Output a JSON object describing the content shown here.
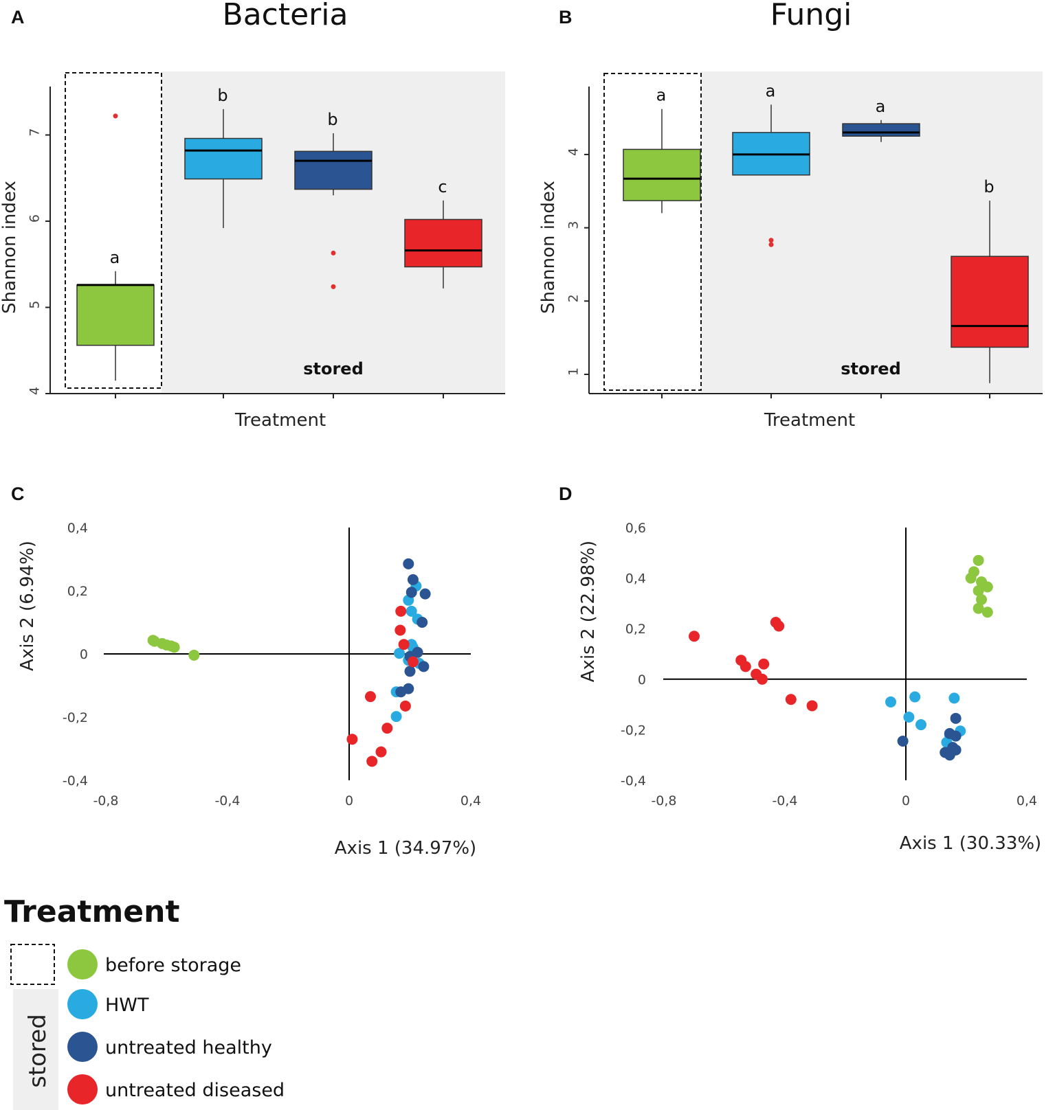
{
  "colors": {
    "before_storage": "#8dc63f",
    "hwt": "#29abe2",
    "untreated_healthy": "#2b5592",
    "untreated_diseased": "#e8262a",
    "panel_bg": "#efefef",
    "outlier": "#e03030"
  },
  "chart_data": [
    {
      "id": "A",
      "type": "box",
      "panel_label": "A",
      "title": "Bacteria",
      "xlabel": "Treatment",
      "ylabel": "Shannon index",
      "ylim": [
        4,
        7.4
      ],
      "yticks": [
        4,
        5,
        6,
        7
      ],
      "annotation": "stored",
      "groups": [
        {
          "name": "before storage",
          "color_key": "before_storage",
          "min": 4.15,
          "q1": 4.56,
          "median": 5.26,
          "q3": 5.26,
          "max": 5.42,
          "outliers": [
            7.22
          ],
          "sig": "a"
        },
        {
          "name": "HWT",
          "color_key": "hwt",
          "min": 5.92,
          "q1": 6.49,
          "median": 6.82,
          "q3": 6.96,
          "max": 7.3,
          "outliers": [],
          "sig": "b"
        },
        {
          "name": "untreated healthy",
          "color_key": "untreated_healthy",
          "min": 6.3,
          "q1": 6.37,
          "median": 6.7,
          "q3": 6.81,
          "max": 7.02,
          "outliers": [
            5.63,
            5.24
          ],
          "sig": "b"
        },
        {
          "name": "untreated diseased",
          "color_key": "untreated_diseased",
          "min": 5.22,
          "q1": 5.47,
          "median": 5.66,
          "q3": 6.02,
          "max": 6.24,
          "outliers": [],
          "sig": "c"
        }
      ]
    },
    {
      "id": "B",
      "type": "box",
      "panel_label": "B",
      "title": "Fungi",
      "xlabel": "Treatment",
      "ylabel": "Shannon index",
      "ylim": [
        0.7,
        4.8
      ],
      "yticks": [
        1,
        2,
        3,
        4
      ],
      "annotation": "stored",
      "groups": [
        {
          "name": "before storage",
          "color_key": "before_storage",
          "min": 3.2,
          "q1": 3.37,
          "median": 3.67,
          "q3": 4.07,
          "max": 4.62,
          "outliers": [],
          "sig": "a"
        },
        {
          "name": "HWT",
          "color_key": "hwt",
          "min": 3.72,
          "q1": 3.72,
          "median": 4.0,
          "q3": 4.3,
          "max": 4.68,
          "outliers": [
            2.83,
            2.77
          ],
          "sig": "a"
        },
        {
          "name": "untreated healthy",
          "color_key": "untreated_healthy",
          "min": 4.17,
          "q1": 4.25,
          "median": 4.3,
          "q3": 4.42,
          "max": 4.47,
          "outliers": [],
          "sig": "a"
        },
        {
          "name": "untreated diseased",
          "color_key": "untreated_diseased",
          "min": 0.88,
          "q1": 1.37,
          "median": 1.66,
          "q3": 2.61,
          "max": 3.37,
          "outliers": [],
          "sig": "b"
        }
      ]
    },
    {
      "id": "C",
      "type": "scatter",
      "panel_label": "C",
      "xlabel": "Axis 1 (34.97%)",
      "ylabel": "Axis 2 (6.94%)",
      "xlim": [
        -0.8,
        0.4
      ],
      "ylim": [
        -0.4,
        0.4
      ],
      "xticks": [
        -0.8,
        -0.4,
        0,
        0.4
      ],
      "yticks": [
        -0.4,
        -0.2,
        0,
        0.2,
        0.4
      ],
      "xticklabels": [
        "-0,8",
        "-0,4",
        "0",
        "0,4"
      ],
      "yticklabels": [
        "-0,4",
        "-0,2",
        "0",
        "0,2",
        "0,4"
      ],
      "series": [
        {
          "name": "before storage",
          "color_key": "before_storage",
          "points": [
            [
              -0.645,
              0.043
            ],
            [
              -0.64,
              0.04
            ],
            [
              -0.615,
              0.033
            ],
            [
              -0.6,
              0.028
            ],
            [
              -0.585,
              0.025
            ],
            [
              -0.575,
              0.021
            ],
            [
              -0.51,
              -0.004
            ]
          ]
        },
        {
          "name": "HWT",
          "color_key": "hwt",
          "points": [
            [
              0.22,
              0.215
            ],
            [
              0.195,
              0.17
            ],
            [
              0.205,
              0.135
            ],
            [
              0.225,
              0.11
            ],
            [
              0.205,
              0.03
            ],
            [
              0.21,
              0.02
            ],
            [
              0.165,
              0.002
            ],
            [
              0.195,
              -0.02
            ],
            [
              0.155,
              -0.12
            ],
            [
              0.155,
              -0.198
            ],
            [
              0.23,
              -0.03
            ]
          ]
        },
        {
          "name": "untreated healthy",
          "color_key": "untreated_healthy",
          "points": [
            [
              0.195,
              0.285
            ],
            [
              0.21,
              0.235
            ],
            [
              0.205,
              0.195
            ],
            [
              0.25,
              0.19
            ],
            [
              0.24,
              0.1
            ],
            [
              0.225,
              0.005
            ],
            [
              0.2,
              -0.008
            ],
            [
              0.245,
              -0.04
            ],
            [
              0.2,
              -0.055
            ],
            [
              0.195,
              -0.11
            ],
            [
              0.17,
              -0.12
            ]
          ]
        },
        {
          "name": "untreated diseased",
          "color_key": "untreated_diseased",
          "points": [
            [
              0.17,
              0.135
            ],
            [
              0.168,
              0.075
            ],
            [
              0.18,
              0.03
            ],
            [
              0.21,
              -0.025
            ],
            [
              0.07,
              -0.135
            ],
            [
              0.185,
              -0.165
            ],
            [
              0.125,
              -0.235
            ],
            [
              0.01,
              -0.27
            ],
            [
              0.105,
              -0.31
            ],
            [
              0.075,
              -0.34
            ]
          ]
        }
      ]
    },
    {
      "id": "D",
      "type": "scatter",
      "panel_label": "D",
      "xlabel": "Axis 1 (30.33%)",
      "ylabel": "Axis 2 (22.98%)",
      "xlim": [
        -0.8,
        0.4
      ],
      "ylim": [
        -0.4,
        0.6
      ],
      "xticks": [
        -0.8,
        -0.4,
        0,
        0.4
      ],
      "yticks": [
        -0.4,
        -0.2,
        0,
        0.2,
        0.4,
        0.6
      ],
      "xticklabels": [
        "-0,8",
        "-0,4",
        "0",
        "0,4"
      ],
      "yticklabels": [
        "-0,4",
        "-0,2",
        "0",
        "0,2",
        "0,4",
        "0,6"
      ],
      "series": [
        {
          "name": "before storage",
          "color_key": "before_storage",
          "points": [
            [
              0.24,
              0.47
            ],
            [
              0.225,
              0.425
            ],
            [
              0.215,
              0.4
            ],
            [
              0.25,
              0.385
            ],
            [
              0.27,
              0.365
            ],
            [
              0.24,
              0.35
            ],
            [
              0.25,
              0.315
            ],
            [
              0.24,
              0.28
            ],
            [
              0.27,
              0.265
            ]
          ]
        },
        {
          "name": "HWT",
          "color_key": "hwt",
          "points": [
            [
              -0.05,
              -0.09
            ],
            [
              0.03,
              -0.07
            ],
            [
              0.16,
              -0.075
            ],
            [
              0.01,
              -0.15
            ],
            [
              0.05,
              -0.18
            ],
            [
              0.18,
              -0.205
            ],
            [
              0.135,
              -0.25
            ],
            [
              0.145,
              -0.22
            ]
          ]
        },
        {
          "name": "untreated healthy",
          "color_key": "untreated_healthy",
          "points": [
            [
              -0.01,
              -0.245
            ],
            [
              0.165,
              -0.155
            ],
            [
              0.145,
              -0.215
            ],
            [
              0.165,
              -0.225
            ],
            [
              0.155,
              -0.27
            ],
            [
              0.165,
              -0.28
            ],
            [
              0.13,
              -0.29
            ],
            [
              0.145,
              -0.3
            ]
          ]
        },
        {
          "name": "untreated diseased",
          "color_key": "untreated_diseased",
          "points": [
            [
              -0.7,
              0.17
            ],
            [
              -0.43,
              0.225
            ],
            [
              -0.42,
              0.21
            ],
            [
              -0.545,
              0.075
            ],
            [
              -0.53,
              0.05
            ],
            [
              -0.47,
              0.06
            ],
            [
              -0.495,
              0.02
            ],
            [
              -0.475,
              0.0
            ],
            [
              -0.38,
              -0.08
            ],
            [
              -0.31,
              -0.105
            ]
          ]
        }
      ]
    }
  ],
  "legend": {
    "title": "Treatment",
    "group_label": "stored",
    "items": [
      {
        "label": "before storage",
        "color_key": "before_storage"
      },
      {
        "label": "HWT",
        "color_key": "hwt"
      },
      {
        "label": "untreated healthy",
        "color_key": "untreated_healthy"
      },
      {
        "label": "untreated diseased",
        "color_key": "untreated_diseased"
      }
    ]
  }
}
